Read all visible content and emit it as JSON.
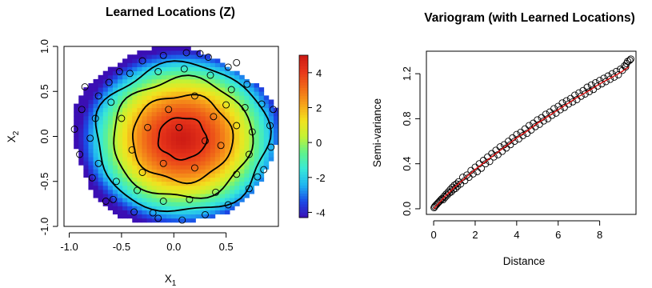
{
  "chart_data": [
    {
      "type": "heatmap",
      "title": "Learned Locations (Z)",
      "xlabel": "X",
      "xlabel_sub": "1",
      "ylabel": "X",
      "ylabel_sub": "2",
      "xlim": [
        -1.05,
        1.0
      ],
      "ylim": [
        -1.0,
        1.0
      ],
      "xticks": [
        -1.0,
        -0.5,
        0.0,
        0.5
      ],
      "xtick_labels": [
        "-1.0",
        "-0.5",
        "0.0",
        "0.5"
      ],
      "yticks": [
        -1.0,
        -0.5,
        0.0,
        0.5,
        1.0
      ],
      "ytick_labels": [
        "-1.0",
        "-0.5",
        "0.0",
        "0.5",
        "1.0"
      ],
      "colorbar": {
        "range": [
          -4.3,
          5.0
        ],
        "ticks": [
          -4,
          -2,
          0,
          2,
          4
        ],
        "tick_labels": [
          "-4",
          "-2",
          "0",
          "2",
          "4"
        ],
        "colors": [
          "#3b0fb4",
          "#1b4ae6",
          "#1fb4f2",
          "#38e8d8",
          "#5ff28c",
          "#c4f234",
          "#f2e21e",
          "#f7a21a",
          "#f06a18",
          "#e8361a",
          "#cc1a14"
        ]
      },
      "contour_levels": [
        -2,
        0,
        2,
        4
      ],
      "field": {
        "center": [
          0.08,
          -0.02
        ],
        "peak": 4.9,
        "edge_value": -4.2,
        "radius": 0.98
      },
      "points": [
        [
          -0.72,
          0.45
        ],
        [
          -0.52,
          0.72
        ],
        [
          -0.3,
          0.84
        ],
        [
          -0.1,
          0.9
        ],
        [
          0.12,
          0.93
        ],
        [
          0.33,
          0.88
        ],
        [
          0.52,
          0.77
        ],
        [
          0.7,
          0.58
        ],
        [
          0.84,
          0.36
        ],
        [
          0.92,
          0.12
        ],
        [
          0.93,
          -0.12
        ],
        [
          0.86,
          -0.37
        ],
        [
          0.72,
          -0.58
        ],
        [
          0.52,
          -0.76
        ],
        [
          0.3,
          -0.87
        ],
        [
          0.08,
          -0.93
        ],
        [
          -0.15,
          -0.91
        ],
        [
          -0.38,
          -0.84
        ],
        [
          -0.58,
          -0.7
        ],
        [
          -0.78,
          -0.46
        ],
        [
          -0.9,
          -0.2
        ],
        [
          -0.95,
          0.08
        ],
        [
          -0.88,
          0.3
        ],
        [
          -0.62,
          0.6
        ],
        [
          -0.42,
          0.7
        ],
        [
          -0.6,
          0.38
        ],
        [
          -0.75,
          0.2
        ],
        [
          -0.8,
          -0.02
        ],
        [
          -0.72,
          -0.3
        ],
        [
          -0.55,
          -0.5
        ],
        [
          -0.35,
          -0.6
        ],
        [
          -0.1,
          -0.72
        ],
        [
          0.15,
          -0.7
        ],
        [
          0.4,
          -0.62
        ],
        [
          0.6,
          -0.42
        ],
        [
          0.72,
          -0.2
        ],
        [
          0.75,
          0.05
        ],
        [
          0.68,
          0.32
        ],
        [
          0.55,
          0.52
        ],
        [
          0.35,
          0.68
        ],
        [
          0.1,
          0.75
        ],
        [
          -0.15,
          0.72
        ],
        [
          0.38,
          0.22
        ],
        [
          0.2,
          0.45
        ],
        [
          -0.05,
          0.3
        ],
        [
          -0.25,
          0.1
        ],
        [
          -0.4,
          -0.15
        ],
        [
          -0.1,
          -0.3
        ],
        [
          0.2,
          -0.35
        ],
        [
          0.45,
          -0.1
        ],
        [
          0.6,
          0.12
        ],
        [
          0.3,
          -0.05
        ],
        [
          0.05,
          0.1
        ],
        [
          -0.5,
          0.2
        ],
        [
          -0.3,
          -0.4
        ],
        [
          0.5,
          0.35
        ],
        [
          0.8,
          -0.45
        ],
        [
          -0.85,
          0.55
        ],
        [
          0.6,
          0.82
        ],
        [
          -0.2,
          -0.85
        ],
        [
          0.95,
          0.3
        ],
        [
          -0.65,
          -0.72
        ],
        [
          0.25,
          0.92
        ]
      ]
    },
    {
      "type": "scatter",
      "title": "Variogram (with Learned Locations)",
      "xlabel": "Distance",
      "ylabel": "Semi-variance",
      "xlim": [
        -0.35,
        9.75
      ],
      "ylim": [
        -0.05,
        1.4
      ],
      "xticks": [
        0,
        2,
        4,
        6,
        8
      ],
      "xtick_labels": [
        "0",
        "2",
        "4",
        "6",
        "8"
      ],
      "yticks": [
        0.0,
        0.4,
        0.8,
        1.2
      ],
      "ytick_labels": [
        "0.0",
        "0.4",
        "0.8",
        "1.2"
      ],
      "point_color": "#000000",
      "fit_line_color": "#e01010",
      "fit_curve": {
        "x": [
          0,
          0.5,
          1,
          1.5,
          2,
          2.5,
          3,
          3.5,
          4,
          4.5,
          5,
          5.5,
          6,
          6.5,
          7,
          7.5,
          8,
          8.5,
          9,
          9.4
        ],
        "y": [
          0.0,
          0.1,
          0.19,
          0.27,
          0.35,
          0.42,
          0.49,
          0.56,
          0.63,
          0.69,
          0.76,
          0.82,
          0.88,
          0.94,
          1.0,
          1.05,
          1.11,
          1.16,
          1.21,
          1.26
        ]
      },
      "points": [
        [
          0.02,
          0.01
        ],
        [
          0.05,
          0.02
        ],
        [
          0.1,
          0.03
        ],
        [
          0.15,
          0.04
        ],
        [
          0.2,
          0.05
        ],
        [
          0.25,
          0.06
        ],
        [
          0.3,
          0.07
        ],
        [
          0.35,
          0.08
        ],
        [
          0.4,
          0.09
        ],
        [
          0.45,
          0.08
        ],
        [
          0.5,
          0.11
        ],
        [
          0.55,
          0.1
        ],
        [
          0.6,
          0.13
        ],
        [
          0.65,
          0.12
        ],
        [
          0.7,
          0.15
        ],
        [
          0.75,
          0.14
        ],
        [
          0.8,
          0.17
        ],
        [
          0.85,
          0.15
        ],
        [
          0.9,
          0.19
        ],
        [
          0.95,
          0.17
        ],
        [
          1.0,
          0.21
        ],
        [
          1.05,
          0.18
        ],
        [
          1.1,
          0.22
        ],
        [
          1.15,
          0.2
        ],
        [
          1.2,
          0.24
        ],
        [
          1.3,
          0.22
        ],
        [
          1.4,
          0.28
        ],
        [
          1.5,
          0.25
        ],
        [
          1.6,
          0.3
        ],
        [
          1.7,
          0.28
        ],
        [
          1.8,
          0.34
        ],
        [
          1.9,
          0.31
        ],
        [
          2.0,
          0.37
        ],
        [
          2.1,
          0.33
        ],
        [
          2.2,
          0.4
        ],
        [
          2.3,
          0.36
        ],
        [
          2.4,
          0.43
        ],
        [
          2.5,
          0.4
        ],
        [
          2.6,
          0.46
        ],
        [
          2.7,
          0.42
        ],
        [
          2.8,
          0.49
        ],
        [
          2.9,
          0.46
        ],
        [
          3.0,
          0.52
        ],
        [
          3.1,
          0.48
        ],
        [
          3.2,
          0.55
        ],
        [
          3.3,
          0.51
        ],
        [
          3.4,
          0.57
        ],
        [
          3.5,
          0.54
        ],
        [
          3.6,
          0.6
        ],
        [
          3.7,
          0.57
        ],
        [
          3.8,
          0.63
        ],
        [
          3.9,
          0.6
        ],
        [
          4.0,
          0.66
        ],
        [
          4.1,
          0.62
        ],
        [
          4.2,
          0.68
        ],
        [
          4.3,
          0.65
        ],
        [
          4.4,
          0.71
        ],
        [
          4.5,
          0.67
        ],
        [
          4.6,
          0.74
        ],
        [
          4.7,
          0.7
        ],
        [
          4.8,
          0.76
        ],
        [
          4.9,
          0.73
        ],
        [
          5.0,
          0.79
        ],
        [
          5.1,
          0.75
        ],
        [
          5.2,
          0.81
        ],
        [
          5.3,
          0.78
        ],
        [
          5.4,
          0.84
        ],
        [
          5.5,
          0.8
        ],
        [
          5.6,
          0.86
        ],
        [
          5.7,
          0.83
        ],
        [
          5.8,
          0.89
        ],
        [
          5.9,
          0.85
        ],
        [
          6.0,
          0.91
        ],
        [
          6.1,
          0.88
        ],
        [
          6.2,
          0.94
        ],
        [
          6.3,
          0.9
        ],
        [
          6.4,
          0.96
        ],
        [
          6.5,
          0.93
        ],
        [
          6.6,
          0.98
        ],
        [
          6.7,
          0.95
        ],
        [
          6.8,
          1.01
        ],
        [
          6.9,
          0.97
        ],
        [
          7.0,
          1.03
        ],
        [
          7.1,
          1.0
        ],
        [
          7.2,
          1.05
        ],
        [
          7.3,
          1.02
        ],
        [
          7.4,
          1.08
        ],
        [
          7.5,
          1.04
        ],
        [
          7.6,
          1.1
        ],
        [
          7.7,
          1.06
        ],
        [
          7.8,
          1.12
        ],
        [
          7.9,
          1.09
        ],
        [
          8.0,
          1.14
        ],
        [
          8.1,
          1.11
        ],
        [
          8.2,
          1.16
        ],
        [
          8.3,
          1.13
        ],
        [
          8.4,
          1.18
        ],
        [
          8.5,
          1.15
        ],
        [
          8.6,
          1.2
        ],
        [
          8.7,
          1.17
        ],
        [
          8.8,
          1.22
        ],
        [
          8.9,
          1.19
        ],
        [
          9.0,
          1.24
        ],
        [
          9.1,
          1.23
        ],
        [
          9.2,
          1.27
        ],
        [
          9.3,
          1.29
        ],
        [
          9.35,
          1.31
        ],
        [
          9.45,
          1.32
        ],
        [
          9.5,
          1.33
        ],
        [
          9.25,
          1.26
        ]
      ]
    }
  ]
}
